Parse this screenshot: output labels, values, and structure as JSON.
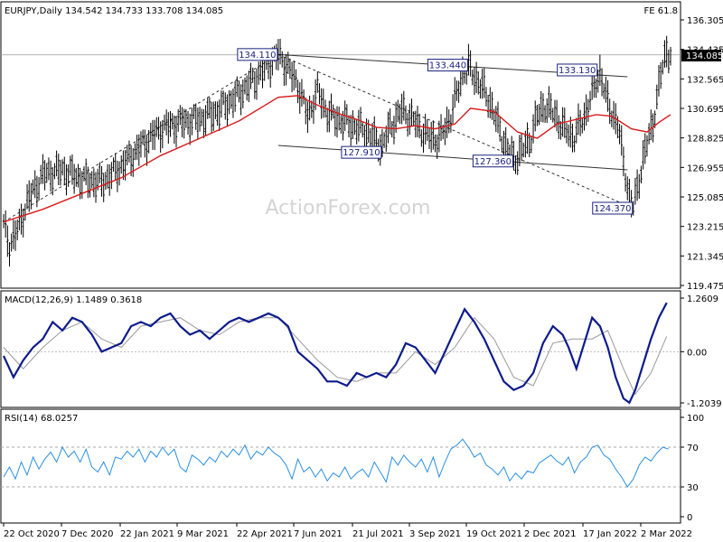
{
  "header": {
    "symbol_info": "EURJPY,Daily  134.542 134.733 133.708 134.085",
    "fe_label": "FE 61.8",
    "last_price": "134.085",
    "watermark": "ActionForex.com"
  },
  "chart_data": [
    {
      "type": "candlestick",
      "title": "EURJPY,Daily",
      "ohlc": {
        "open": 134.542,
        "high": 134.733,
        "low": 133.708,
        "close": 134.085
      },
      "ylim": [
        119.475,
        136.305
      ],
      "y_ticks": [
        "136.305",
        "134.435",
        "132.565",
        "130.695",
        "128.825",
        "126.955",
        "125.085",
        "123.215",
        "121.345",
        "119.475"
      ],
      "x_ticks": [
        "22 Oct 2020",
        "7 Dec 2020",
        "22 Jan 2021",
        "9 Mar 2021",
        "22 Apr 2021",
        "7 Jun 2021",
        "21 Jul 2021",
        "3 Sep 2021",
        "19 Oct 2021",
        "2 Dec 2021",
        "17 Jan 2022",
        "2 Mar 2022"
      ],
      "price_path": [
        [
          0,
          123.3
        ],
        [
          3,
          122.0
        ],
        [
          8,
          123.2
        ],
        [
          12,
          124.8
        ],
        [
          20,
          126.5
        ],
        [
          30,
          126.8
        ],
        [
          40,
          126.2
        ],
        [
          50,
          126.0
        ],
        [
          60,
          127.0
        ],
        [
          70,
          128.3
        ],
        [
          80,
          129.4
        ],
        [
          90,
          129.8
        ],
        [
          100,
          130.0
        ],
        [
          110,
          130.6
        ],
        [
          120,
          131.6
        ],
        [
          130,
          132.8
        ],
        [
          140,
          134.1
        ],
        [
          143,
          133.6
        ],
        [
          150,
          132.2
        ],
        [
          155,
          130.2
        ],
        [
          160,
          131.8
        ],
        [
          165,
          130.4
        ],
        [
          170,
          130.0
        ],
        [
          175,
          129.8
        ],
        [
          185,
          129.2
        ],
        [
          193,
          128.3
        ],
        [
          197,
          129.5
        ],
        [
          203,
          130.6
        ],
        [
          210,
          129.8
        ],
        [
          215,
          129.0
        ],
        [
          222,
          128.7
        ],
        [
          228,
          130.2
        ],
        [
          234,
          133.0
        ],
        [
          237,
          133.3
        ],
        [
          243,
          132.2
        ],
        [
          248,
          131.1
        ],
        [
          252,
          129.6
        ],
        [
          256,
          128.3
        ],
        [
          260,
          127.4
        ],
        [
          264,
          128.0
        ],
        [
          268,
          128.6
        ],
        [
          272,
          130.2
        ],
        [
          276,
          130.9
        ],
        [
          281,
          130.3
        ],
        [
          286,
          129.3
        ],
        [
          291,
          128.9
        ],
        [
          296,
          130.2
        ],
        [
          301,
          132.0
        ],
        [
          304,
          133.0
        ],
        [
          308,
          131.0
        ],
        [
          313,
          129.7
        ],
        [
          319,
          125.0
        ],
        [
          321,
          124.4
        ],
        [
          326,
          127.5
        ],
        [
          331,
          129.8
        ],
        [
          335,
          132.8
        ],
        [
          338,
          134.4
        ],
        [
          340,
          134.1
        ]
      ],
      "moving_average": [
        [
          0,
          123.5
        ],
        [
          20,
          124.3
        ],
        [
          40,
          125.3
        ],
        [
          60,
          126.3
        ],
        [
          80,
          127.7
        ],
        [
          100,
          128.8
        ],
        [
          120,
          129.9
        ],
        [
          140,
          131.4
        ],
        [
          150,
          131.5
        ],
        [
          160,
          130.9
        ],
        [
          170,
          130.4
        ],
        [
          180,
          130.0
        ],
        [
          190,
          129.5
        ],
        [
          200,
          129.4
        ],
        [
          210,
          129.6
        ],
        [
          220,
          129.4
        ],
        [
          230,
          129.7
        ],
        [
          238,
          130.7
        ],
        [
          250,
          130.5
        ],
        [
          262,
          129.2
        ],
        [
          272,
          128.8
        ],
        [
          282,
          129.7
        ],
        [
          292,
          130.0
        ],
        [
          302,
          130.3
        ],
        [
          310,
          130.2
        ],
        [
          320,
          129.4
        ],
        [
          328,
          129.2
        ],
        [
          334,
          129.8
        ],
        [
          340,
          130.3
        ]
      ],
      "annotations": [
        {
          "label": "134.110",
          "x": 140,
          "y": 134.11
        },
        {
          "label": "133.440",
          "x": 237,
          "y": 133.44
        },
        {
          "label": "133.130",
          "x": 303,
          "y": 133.13
        },
        {
          "label": "127.910",
          "x": 193,
          "y": 127.91
        },
        {
          "label": "127.360",
          "x": 260,
          "y": 127.36
        },
        {
          "label": "124.370",
          "x": 321,
          "y": 124.37
        }
      ],
      "trendlines": [
        {
          "style": "solid",
          "points": [
            [
              140,
              134.11
            ],
            [
              318,
              132.7
            ]
          ]
        },
        {
          "style": "solid",
          "points": [
            [
              140,
              128.35
            ],
            [
              318,
              126.8
            ]
          ]
        },
        {
          "style": "dashed",
          "points": [
            [
              0,
              123.5
            ],
            [
              140,
              134.11
            ]
          ]
        },
        {
          "style": "dashed",
          "points": [
            [
              140,
              134.11
            ],
            [
              321,
              124.37
            ]
          ]
        }
      ]
    },
    {
      "type": "line",
      "title": "MACD(12,26,9) 1.1489 0.3618",
      "ylim": [
        -1.2039,
        1.2609
      ],
      "y_ticks": [
        "1.2609",
        "0.00",
        "-1.2039"
      ],
      "macd": [
        [
          0,
          -0.1
        ],
        [
          5,
          -0.6
        ],
        [
          10,
          -0.2
        ],
        [
          15,
          0.1
        ],
        [
          20,
          0.3
        ],
        [
          25,
          0.7
        ],
        [
          30,
          0.5
        ],
        [
          35,
          0.8
        ],
        [
          40,
          0.7
        ],
        [
          45,
          0.4
        ],
        [
          50,
          0.0
        ],
        [
          55,
          0.1
        ],
        [
          60,
          0.2
        ],
        [
          65,
          0.6
        ],
        [
          70,
          0.7
        ],
        [
          75,
          0.6
        ],
        [
          80,
          0.8
        ],
        [
          85,
          0.9
        ],
        [
          90,
          0.6
        ],
        [
          95,
          0.4
        ],
        [
          100,
          0.5
        ],
        [
          105,
          0.3
        ],
        [
          110,
          0.5
        ],
        [
          115,
          0.7
        ],
        [
          120,
          0.8
        ],
        [
          125,
          0.7
        ],
        [
          130,
          0.8
        ],
        [
          135,
          0.9
        ],
        [
          140,
          0.8
        ],
        [
          145,
          0.6
        ],
        [
          150,
          0.0
        ],
        [
          155,
          -0.2
        ],
        [
          160,
          -0.4
        ],
        [
          165,
          -0.7
        ],
        [
          170,
          -0.7
        ],
        [
          175,
          -0.8
        ],
        [
          180,
          -0.5
        ],
        [
          185,
          -0.6
        ],
        [
          190,
          -0.5
        ],
        [
          195,
          -0.6
        ],
        [
          200,
          -0.3
        ],
        [
          205,
          0.2
        ],
        [
          210,
          0.1
        ],
        [
          215,
          -0.2
        ],
        [
          220,
          -0.5
        ],
        [
          225,
          0.0
        ],
        [
          230,
          0.5
        ],
        [
          235,
          1.0
        ],
        [
          240,
          0.7
        ],
        [
          245,
          0.3
        ],
        [
          250,
          -0.2
        ],
        [
          255,
          -0.7
        ],
        [
          260,
          -0.9
        ],
        [
          265,
          -0.8
        ],
        [
          270,
          -0.5
        ],
        [
          275,
          0.2
        ],
        [
          280,
          0.6
        ],
        [
          285,
          0.4
        ],
        [
          288,
          0.1
        ],
        [
          292,
          -0.4
        ],
        [
          296,
          0.2
        ],
        [
          300,
          0.8
        ],
        [
          304,
          0.6
        ],
        [
          308,
          0.1
        ],
        [
          312,
          -0.6
        ],
        [
          316,
          -1.1
        ],
        [
          319,
          -1.2
        ],
        [
          322,
          -0.9
        ],
        [
          326,
          -0.3
        ],
        [
          330,
          0.3
        ],
        [
          334,
          0.8
        ],
        [
          338,
          1.15
        ]
      ],
      "signal": [
        [
          0,
          0.1
        ],
        [
          10,
          -0.4
        ],
        [
          20,
          0.1
        ],
        [
          30,
          0.5
        ],
        [
          40,
          0.7
        ],
        [
          50,
          0.3
        ],
        [
          60,
          0.1
        ],
        [
          70,
          0.6
        ],
        [
          80,
          0.7
        ],
        [
          90,
          0.8
        ],
        [
          100,
          0.5
        ],
        [
          110,
          0.4
        ],
        [
          120,
          0.7
        ],
        [
          130,
          0.8
        ],
        [
          140,
          0.8
        ],
        [
          150,
          0.3
        ],
        [
          160,
          -0.2
        ],
        [
          170,
          -0.6
        ],
        [
          180,
          -0.7
        ],
        [
          190,
          -0.5
        ],
        [
          200,
          -0.5
        ],
        [
          210,
          0.0
        ],
        [
          220,
          -0.3
        ],
        [
          230,
          0.1
        ],
        [
          240,
          0.8
        ],
        [
          250,
          0.3
        ],
        [
          260,
          -0.6
        ],
        [
          270,
          -0.8
        ],
        [
          280,
          0.2
        ],
        [
          290,
          0.3
        ],
        [
          300,
          0.3
        ],
        [
          308,
          0.5
        ],
        [
          316,
          -0.4
        ],
        [
          322,
          -1.0
        ],
        [
          330,
          -0.5
        ],
        [
          338,
          0.36
        ]
      ]
    },
    {
      "type": "line",
      "title": "RSI(14) 68.0257",
      "ylim": [
        0,
        100
      ],
      "y_ticks": [
        "100",
        "70",
        "30",
        "0"
      ],
      "levels": [
        70,
        30
      ],
      "rsi": [
        [
          0,
          40
        ],
        [
          3,
          50
        ],
        [
          6,
          38
        ],
        [
          9,
          55
        ],
        [
          12,
          42
        ],
        [
          15,
          60
        ],
        [
          18,
          48
        ],
        [
          21,
          58
        ],
        [
          24,
          65
        ],
        [
          27,
          55
        ],
        [
          30,
          70
        ],
        [
          33,
          60
        ],
        [
          36,
          66
        ],
        [
          39,
          55
        ],
        [
          42,
          68
        ],
        [
          45,
          50
        ],
        [
          48,
          45
        ],
        [
          51,
          55
        ],
        [
          54,
          42
        ],
        [
          57,
          60
        ],
        [
          60,
          58
        ],
        [
          63,
          66
        ],
        [
          66,
          60
        ],
        [
          69,
          68
        ],
        [
          72,
          55
        ],
        [
          75,
          66
        ],
        [
          78,
          60
        ],
        [
          81,
          70
        ],
        [
          84,
          62
        ],
        [
          87,
          68
        ],
        [
          90,
          50
        ],
        [
          93,
          45
        ],
        [
          96,
          62
        ],
        [
          99,
          58
        ],
        [
          102,
          52
        ],
        [
          105,
          60
        ],
        [
          108,
          55
        ],
        [
          111,
          66
        ],
        [
          114,
          60
        ],
        [
          117,
          68
        ],
        [
          120,
          62
        ],
        [
          123,
          72
        ],
        [
          126,
          58
        ],
        [
          129,
          66
        ],
        [
          132,
          62
        ],
        [
          135,
          70
        ],
        [
          138,
          64
        ],
        [
          141,
          60
        ],
        [
          144,
          52
        ],
        [
          147,
          38
        ],
        [
          150,
          58
        ],
        [
          153,
          45
        ],
        [
          156,
          50
        ],
        [
          159,
          40
        ],
        [
          162,
          48
        ],
        [
          165,
          36
        ],
        [
          168,
          44
        ],
        [
          171,
          40
        ],
        [
          174,
          50
        ],
        [
          177,
          38
        ],
        [
          180,
          44
        ],
        [
          183,
          48
        ],
        [
          186,
          40
        ],
        [
          189,
          55
        ],
        [
          192,
          45
        ],
        [
          195,
          35
        ],
        [
          198,
          60
        ],
        [
          201,
          52
        ],
        [
          204,
          62
        ],
        [
          207,
          55
        ],
        [
          210,
          50
        ],
        [
          213,
          58
        ],
        [
          216,
          45
        ],
        [
          219,
          60
        ],
        [
          222,
          40
        ],
        [
          225,
          55
        ],
        [
          228,
          68
        ],
        [
          231,
          72
        ],
        [
          234,
          78
        ],
        [
          237,
          70
        ],
        [
          240,
          60
        ],
        [
          243,
          64
        ],
        [
          246,
          52
        ],
        [
          249,
          48
        ],
        [
          252,
          42
        ],
        [
          255,
          50
        ],
        [
          258,
          36
        ],
        [
          261,
          44
        ],
        [
          264,
          38
        ],
        [
          267,
          46
        ],
        [
          270,
          44
        ],
        [
          273,
          54
        ],
        [
          276,
          58
        ],
        [
          279,
          62
        ],
        [
          282,
          56
        ],
        [
          285,
          52
        ],
        [
          288,
          60
        ],
        [
          291,
          44
        ],
        [
          294,
          55
        ],
        [
          297,
          60
        ],
        [
          300,
          70
        ],
        [
          303,
          72
        ],
        [
          306,
          62
        ],
        [
          309,
          58
        ],
        [
          312,
          48
        ],
        [
          315,
          40
        ],
        [
          318,
          30
        ],
        [
          321,
          38
        ],
        [
          324,
          52
        ],
        [
          327,
          60
        ],
        [
          330,
          56
        ],
        [
          333,
          64
        ],
        [
          336,
          70
        ],
        [
          339,
          68
        ]
      ]
    }
  ]
}
